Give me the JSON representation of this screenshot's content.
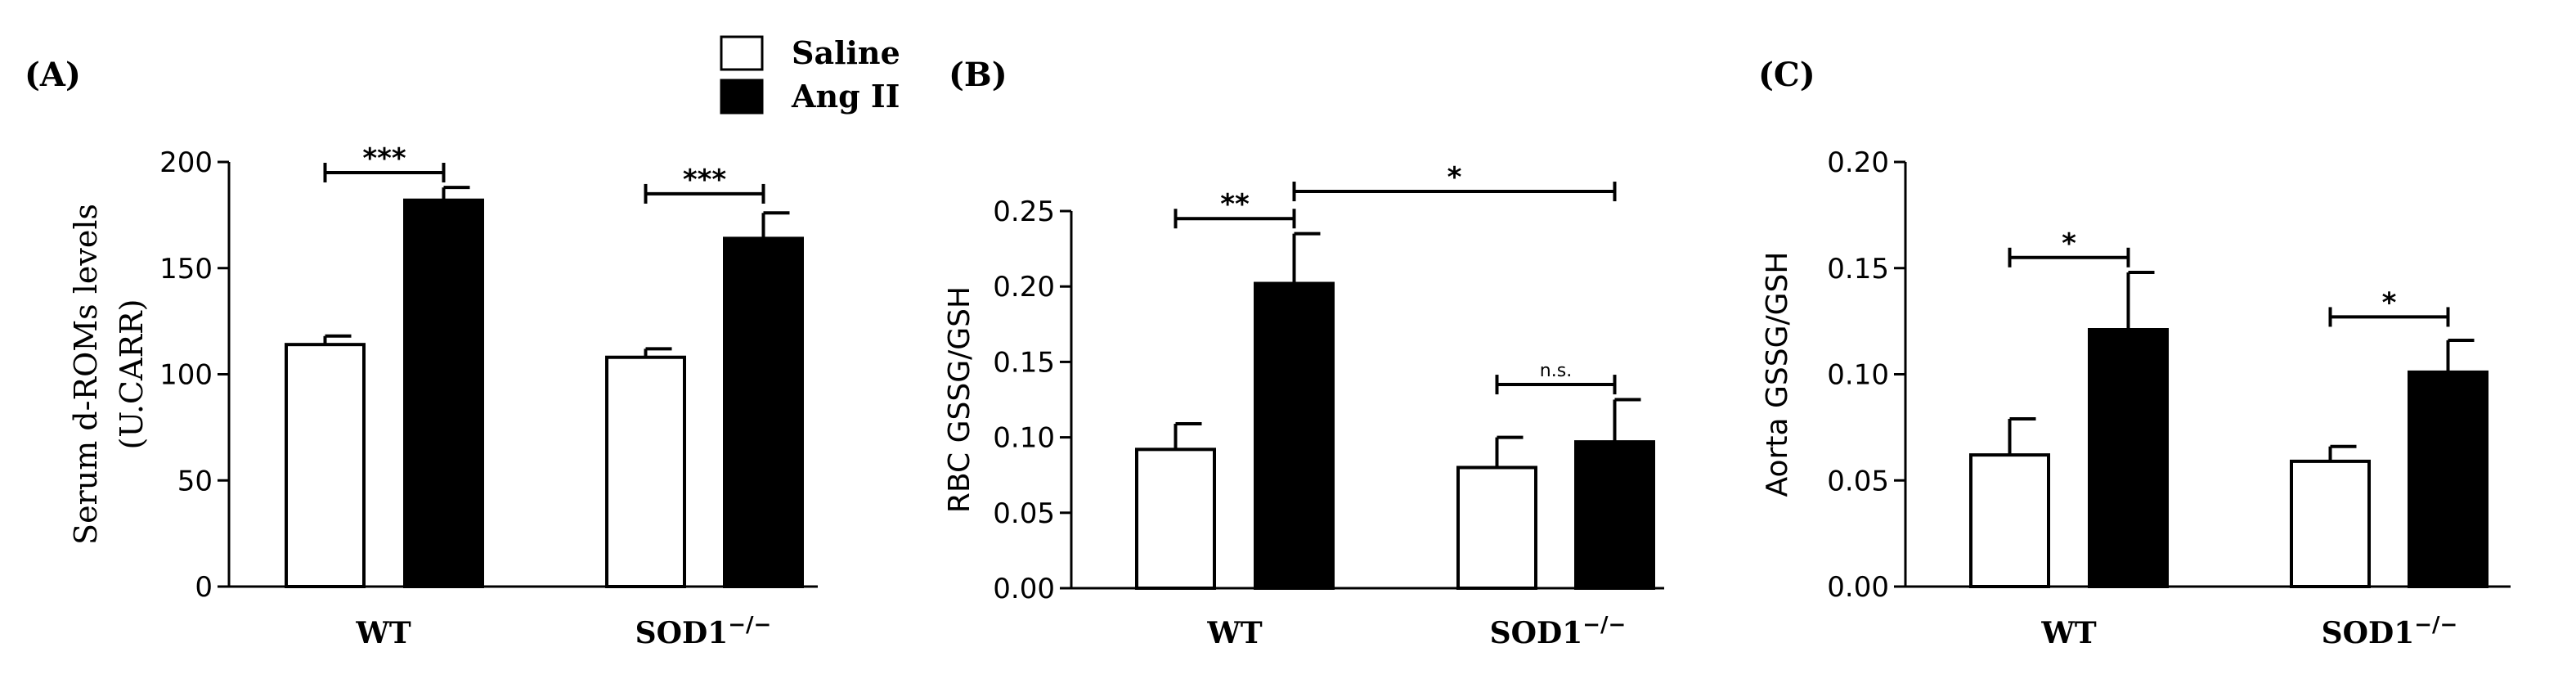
{
  "legend": [
    {
      "name": "Saline",
      "color": "#ffffff"
    },
    {
      "name": "Ang II",
      "color": "#000000"
    }
  ],
  "chart_data": [
    {
      "type": "bar",
      "panel": "(A)",
      "categories": [
        "WT",
        "SOD1"
      ],
      "category_superscript": "−/−",
      "series": [
        {
          "name": "Saline",
          "values": [
            114,
            108
          ],
          "errors": [
            4,
            4
          ]
        },
        {
          "name": "Ang II",
          "values": [
            182,
            164
          ],
          "errors": [
            6,
            12
          ]
        }
      ],
      "ylabel": "Serum d-ROMs levels",
      "ylabel2": "(U.CARR)",
      "ylim": [
        0,
        200
      ],
      "yticks": [
        0,
        50,
        100,
        150,
        200
      ],
      "yticklabels": [
        "0",
        "50",
        "100",
        "150",
        "200"
      ],
      "significance": [
        {
          "label": "***",
          "from": [
            0,
            0
          ],
          "to": [
            0,
            1
          ],
          "y": 195
        },
        {
          "label": "***",
          "from": [
            1,
            0
          ],
          "to": [
            1,
            1
          ],
          "y": 185
        }
      ]
    },
    {
      "type": "bar",
      "panel": "(B)",
      "categories": [
        "WT",
        "SOD1"
      ],
      "category_superscript": "−/−",
      "series": [
        {
          "name": "Saline",
          "values": [
            0.092,
            0.08
          ],
          "errors": [
            0.017,
            0.02
          ]
        },
        {
          "name": "Ang II",
          "values": [
            0.202,
            0.097
          ],
          "errors": [
            0.033,
            0.028
          ]
        }
      ],
      "ylabel": "RBC GSSG/GSH",
      "ylim": [
        0,
        0.25
      ],
      "yticks": [
        0,
        0.05,
        0.1,
        0.15,
        0.2,
        0.25
      ],
      "yticklabels": [
        "0.00",
        "0.05",
        "0.10",
        "0.15",
        "0.20",
        "0.25"
      ],
      "significance": [
        {
          "label": "**",
          "from": [
            0,
            0
          ],
          "to": [
            0,
            1
          ],
          "y": 0.245
        },
        {
          "label": "*",
          "from": [
            0,
            1
          ],
          "to": [
            1,
            1
          ],
          "y": 0.263
        },
        {
          "label": "n.s.",
          "from": [
            1,
            0
          ],
          "to": [
            1,
            1
          ],
          "y": 0.135
        }
      ]
    },
    {
      "type": "bar",
      "panel": "(C)",
      "categories": [
        "WT",
        "SOD1"
      ],
      "category_superscript": "−/−",
      "series": [
        {
          "name": "Saline",
          "values": [
            0.062,
            0.059
          ],
          "errors": [
            0.017,
            0.007
          ]
        },
        {
          "name": "Ang II",
          "values": [
            0.121,
            0.101
          ],
          "errors": [
            0.027,
            0.015
          ]
        }
      ],
      "ylabel": "Aorta GSSG/GSH",
      "ylim": [
        0,
        0.2
      ],
      "yticks": [
        0,
        0.05,
        0.1,
        0.15,
        0.2
      ],
      "yticklabels": [
        "0.00",
        "0.05",
        "0.10",
        "0.15",
        "0.20"
      ],
      "significance": [
        {
          "label": "*",
          "from": [
            0,
            0
          ],
          "to": [
            0,
            1
          ],
          "y": 0.155
        },
        {
          "label": "*",
          "from": [
            1,
            0
          ],
          "to": [
            1,
            1
          ],
          "y": 0.127
        }
      ]
    }
  ]
}
